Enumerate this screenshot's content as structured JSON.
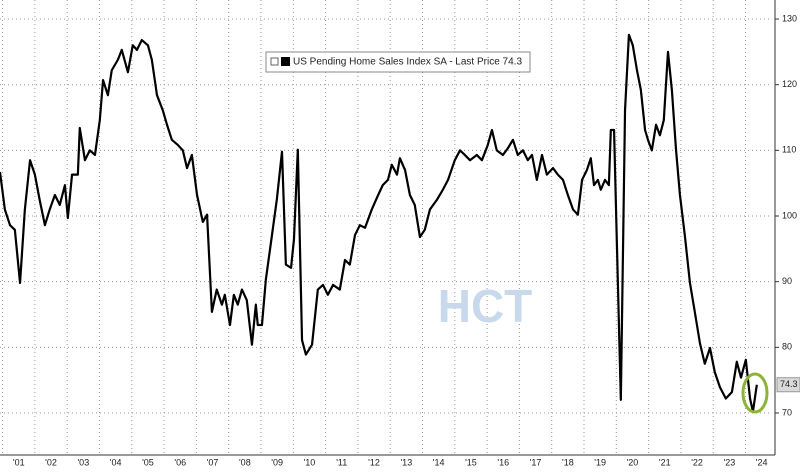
{
  "chart_data": {
    "type": "line",
    "watermark": "HCT",
    "series": [
      {
        "name": "US Pending Home Sales Index SA - Last Price 74.3",
        "color": "#000000",
        "x": [
          2000.92,
          2001.07,
          2001.23,
          2001.38,
          2001.54,
          2001.69,
          2001.85,
          2002.0,
          2002.15,
          2002.31,
          2002.46,
          2002.62,
          2002.77,
          2002.93,
          2003.02,
          2003.15,
          2003.33,
          2003.39,
          2003.55,
          2003.7,
          2003.86,
          2004.01,
          2004.11,
          2004.26,
          2004.38,
          2004.57,
          2004.69,
          2004.88,
          2005.03,
          2005.16,
          2005.31,
          2005.5,
          2005.62,
          2005.78,
          2005.96,
          2006.09,
          2006.24,
          2006.43,
          2006.58,
          2006.71,
          2006.86,
          2007.02,
          2007.2,
          2007.33,
          2007.48,
          2007.63,
          2007.79,
          2007.88,
          2008.04,
          2008.16,
          2008.28,
          2008.41,
          2008.56,
          2008.72,
          2008.84,
          2008.9,
          2009.03,
          2009.15,
          2009.34,
          2009.49,
          2009.65,
          2009.77,
          2009.93,
          2010.02,
          2010.14,
          2010.27,
          2010.39,
          2010.58,
          2010.76,
          2010.92,
          2011.07,
          2011.23,
          2011.44,
          2011.6,
          2011.75,
          2011.91,
          2012.06,
          2012.22,
          2012.43,
          2012.59,
          2012.77,
          2012.93,
          2013.05,
          2013.21,
          2013.3,
          2013.46,
          2013.61,
          2013.76,
          2013.92,
          2014.07,
          2014.23,
          2014.45,
          2014.63,
          2014.79,
          2015.0,
          2015.16,
          2015.31,
          2015.47,
          2015.68,
          2015.84,
          2016.02,
          2016.15,
          2016.3,
          2016.49,
          2016.64,
          2016.8,
          2016.95,
          2017.11,
          2017.26,
          2017.39,
          2017.54,
          2017.7,
          2017.85,
          2018.04,
          2018.19,
          2018.35,
          2018.5,
          2018.66,
          2018.81,
          2018.94,
          2019.09,
          2019.21,
          2019.31,
          2019.43,
          2019.52,
          2019.65,
          2019.77,
          2019.83,
          2019.93,
          2020.05,
          2020.14,
          2020.27,
          2020.39,
          2020.51,
          2020.64,
          2020.76,
          2020.89,
          2020.98,
          2021.1,
          2021.23,
          2021.35,
          2021.47,
          2021.6,
          2021.72,
          2021.85,
          2021.97,
          2022.12,
          2022.28,
          2022.43,
          2022.59,
          2022.74,
          2022.9,
          2023.05,
          2023.21,
          2023.39,
          2023.58,
          2023.73,
          2023.86,
          2024.01,
          2024.14,
          2024.23,
          2024.35
        ],
        "values": [
          106.7,
          101,
          98.6,
          97.9,
          89.8,
          101,
          108.5,
          106.3,
          102.4,
          98.6,
          101,
          103.2,
          101.7,
          104.7,
          99.7,
          106.3,
          106.3,
          113.4,
          108.5,
          110,
          109.3,
          114.6,
          120.7,
          118.4,
          122.2,
          123.8,
          125.3,
          121.9,
          126,
          125.3,
          126.8,
          126,
          123.8,
          118.4,
          116.1,
          113.9,
          111.6,
          110.8,
          110,
          107.3,
          109.3,
          103.2,
          99.1,
          100.2,
          85.4,
          88.8,
          86.5,
          88,
          83.4,
          88,
          86.5,
          88.8,
          87.2,
          80.4,
          86.5,
          83.4,
          83.4,
          90.3,
          97.1,
          102.5,
          109.8,
          92.6,
          92.1,
          96.4,
          110.1,
          81.1,
          78.9,
          80.4,
          88.8,
          89.5,
          88,
          89.5,
          88.8,
          93.3,
          92.6,
          97.1,
          98.6,
          98.2,
          101,
          102.8,
          104.7,
          105.5,
          107.8,
          106.3,
          108.8,
          107,
          103.2,
          101.7,
          96.8,
          97.9,
          101,
          102.5,
          104,
          105.5,
          108.5,
          110,
          109.3,
          108.5,
          109.3,
          108.5,
          110.8,
          113.1,
          110,
          109.3,
          110.3,
          111.6,
          109.3,
          110,
          108.5,
          109.3,
          105.5,
          109.3,
          106.3,
          107.3,
          106.3,
          105.5,
          103.2,
          101,
          100.2,
          105.5,
          107,
          108.8,
          104.7,
          105.5,
          104,
          105.5,
          104.7,
          113.1,
          113.1,
          89.5,
          72,
          116.1,
          127.6,
          126,
          122.2,
          119.2,
          113.1,
          111.6,
          110,
          113.9,
          112.3,
          114.6,
          125,
          119.2,
          110,
          103.2,
          97.1,
          89.8,
          85.4,
          80.6,
          77.5,
          79.9,
          76.2,
          73.9,
          72.2,
          73.2,
          77.8,
          75.4,
          78.1,
          72.2,
          70.2,
          74.3
        ]
      }
    ],
    "xlim": [
      2000.92,
      2024.82
    ],
    "xticks": [
      {
        "value": 2001,
        "label": "'01"
      },
      {
        "value": 2002,
        "label": "'02"
      },
      {
        "value": 2003,
        "label": "'03"
      },
      {
        "value": 2004,
        "label": "'04"
      },
      {
        "value": 2005,
        "label": "'05"
      },
      {
        "value": 2006,
        "label": "'06"
      },
      {
        "value": 2007,
        "label": "'07"
      },
      {
        "value": 2008,
        "label": "'08"
      },
      {
        "value": 2009,
        "label": "'09"
      },
      {
        "value": 2010,
        "label": "'10"
      },
      {
        "value": 2011,
        "label": "'11"
      },
      {
        "value": 2012,
        "label": "'12"
      },
      {
        "value": 2013,
        "label": "'13"
      },
      {
        "value": 2014,
        "label": "'14"
      },
      {
        "value": 2015,
        "label": "'15"
      },
      {
        "value": 2016,
        "label": "'16"
      },
      {
        "value": 2017,
        "label": "'17"
      },
      {
        "value": 2018,
        "label": "'18"
      },
      {
        "value": 2019,
        "label": "'19"
      },
      {
        "value": 2020,
        "label": "'20"
      },
      {
        "value": 2021,
        "label": "'21"
      },
      {
        "value": 2022,
        "label": "'22"
      },
      {
        "value": 2023,
        "label": "'23"
      },
      {
        "value": 2024,
        "label": "'24"
      }
    ],
    "ylim": [
      63.6,
      132.9
    ],
    "yticks": [
      70,
      80,
      90,
      100,
      110,
      120,
      130
    ],
    "grid": true,
    "legend": "top"
  }
}
